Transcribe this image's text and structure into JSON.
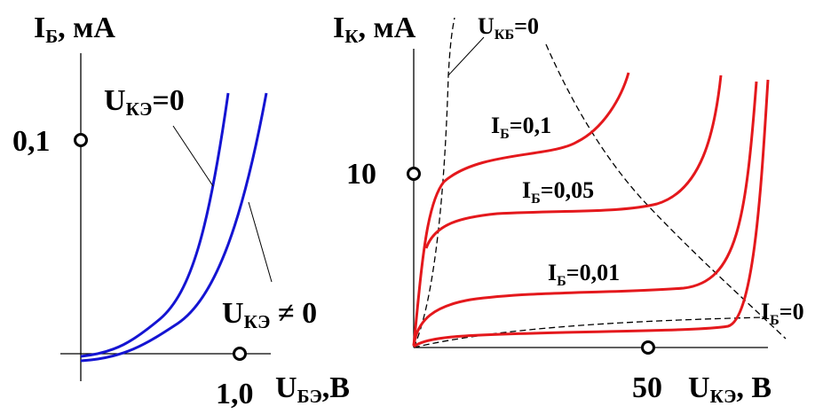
{
  "left": {
    "y_label": {
      "main": "I",
      "sub": "Б",
      "rest": ", мА"
    },
    "y_tick": "0,1",
    "x_tick": "1,0",
    "x_label": {
      "main": "U",
      "sub": "БЭ",
      "rest": ",В"
    },
    "curve_zero": {
      "main": "U",
      "sub": "КЭ",
      "rest": "=0"
    },
    "curve_nonzero": {
      "main": "U",
      "sub": "КЭ",
      "rest": " ≠ 0"
    }
  },
  "right": {
    "y_label": {
      "main": "I",
      "sub": "К",
      "rest": ", мА"
    },
    "y_tick": "10",
    "x_tick": "50",
    "x_label": {
      "main": "U",
      "sub": "КЭ",
      "rest": ", В"
    },
    "boundary": {
      "main": "U",
      "sub": "КБ",
      "rest": "=0"
    },
    "curves": [
      {
        "main": "I",
        "sub": "Б",
        "rest": "=0,1"
      },
      {
        "main": "I",
        "sub": "Б",
        "rest": "=0,05"
      },
      {
        "main": "I",
        "sub": "Б",
        "rest": "=0,01"
      },
      {
        "main": "I",
        "sub": "Б",
        "rest": "=0"
      }
    ]
  }
}
